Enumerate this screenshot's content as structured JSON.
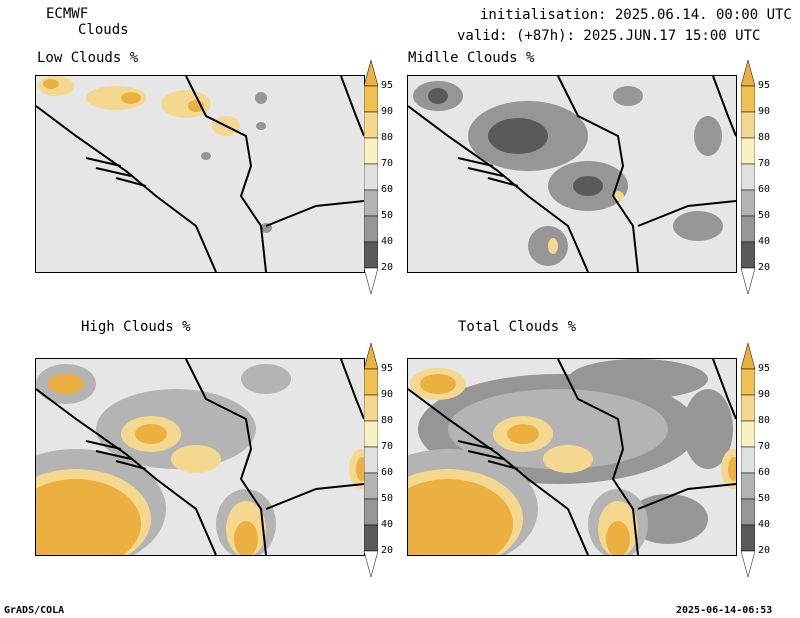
{
  "header": {
    "model": "ECMWF",
    "product": "Clouds",
    "init": "initialisation: 2025.06.14. 00:00 UTC",
    "valid": "valid: (+87h): 2025.JUN.17 15:00 UTC"
  },
  "panels": [
    {
      "title": "Low Clouds %"
    },
    {
      "title": "Midlle Clouds %"
    },
    {
      "title": "High Clouds %"
    },
    {
      "title": "Total Clouds %"
    }
  ],
  "colorbar": {
    "labels": [
      "95",
      "90",
      "80",
      "70",
      "60",
      "50",
      "40",
      "20"
    ],
    "colors": [
      "#ebb040",
      "#f0c050",
      "#f5d890",
      "#f8f2c0",
      "#e0e0e0",
      "#b4b4b4",
      "#969696",
      "#5a5a5a",
      "#ffffff"
    ]
  },
  "footer": {
    "left": "GrADS/COLA",
    "right": "2025-06-14-06:53"
  }
}
